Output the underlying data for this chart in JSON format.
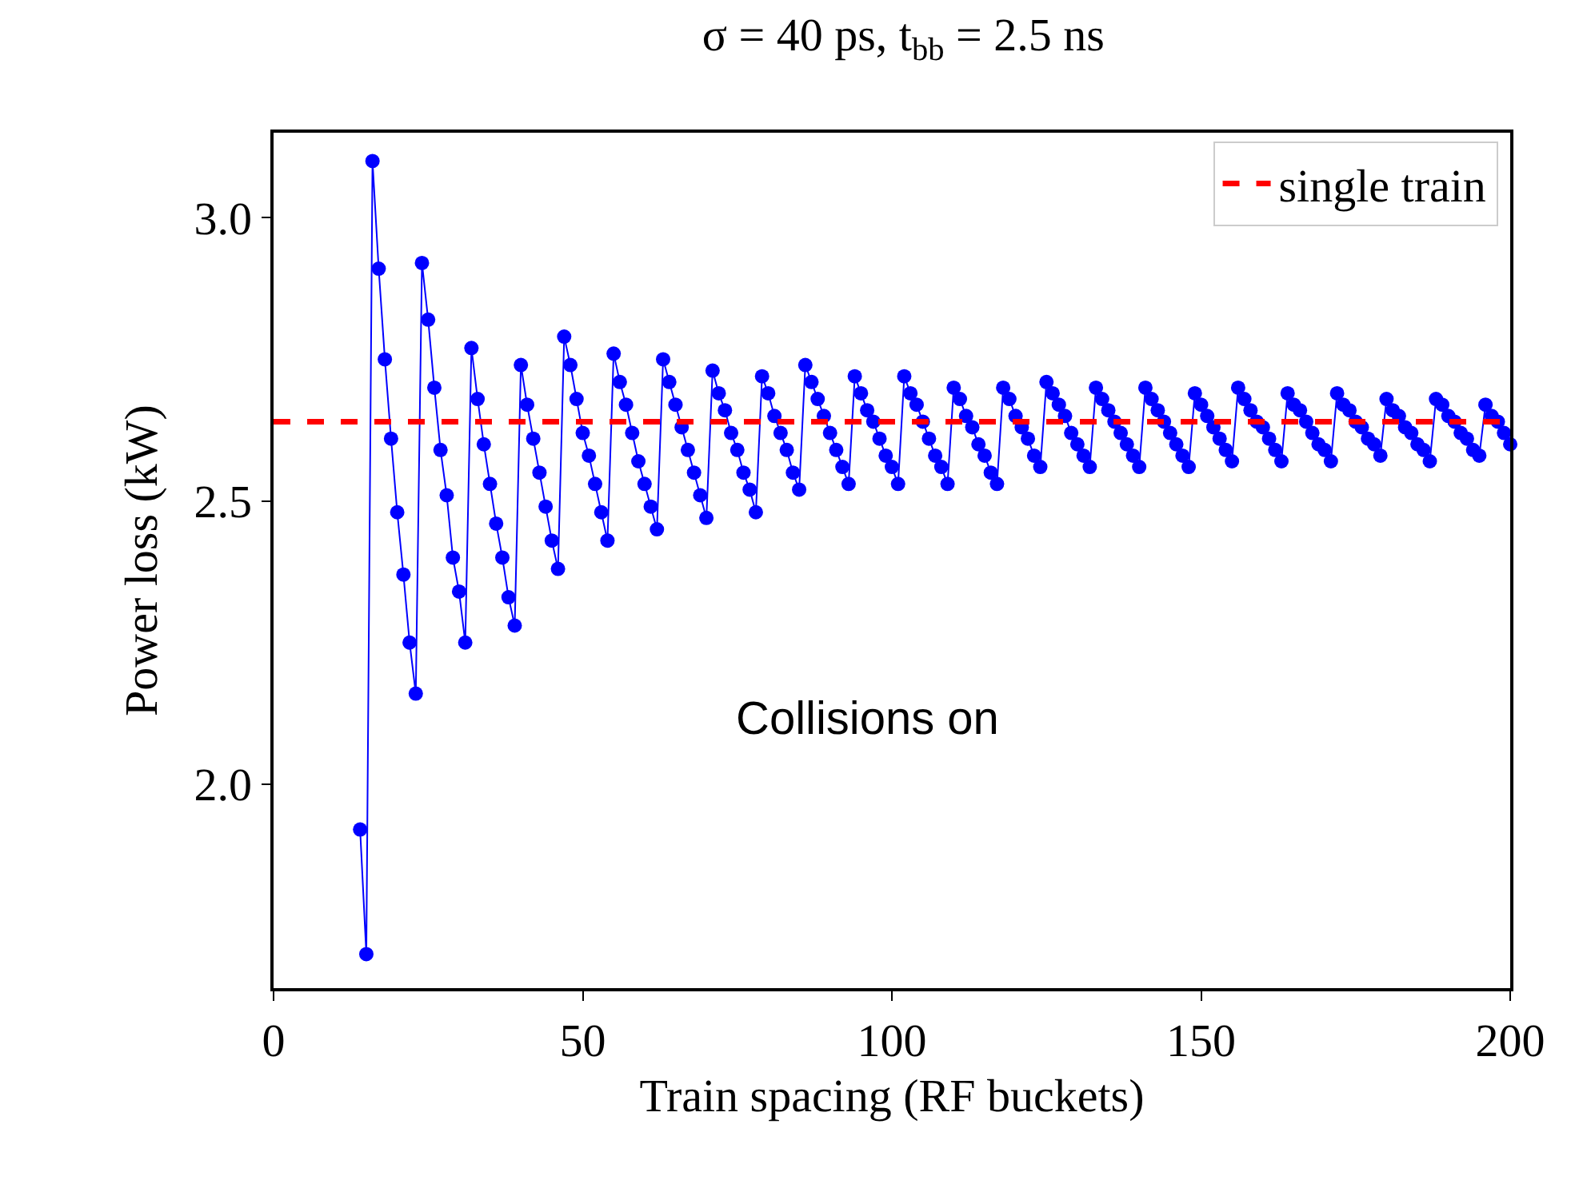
{
  "chart_data": {
    "type": "line",
    "title": "σ = 40 ps, t$_{bb}$ = 2.5 ns",
    "xlabel": "Train spacing (RF buckets)",
    "ylabel": "Power loss (kW)",
    "x": [
      14,
      15,
      16,
      17,
      18,
      19,
      20,
      21,
      22,
      23,
      24,
      25,
      26,
      27,
      28,
      29,
      30,
      31,
      32,
      33,
      34,
      35,
      36,
      37,
      38,
      39,
      40,
      41,
      42,
      43,
      44,
      45,
      46,
      47,
      48,
      49,
      50,
      51,
      52,
      53,
      54,
      55,
      56,
      57,
      58,
      59,
      60,
      61,
      62,
      63,
      64,
      65,
      66,
      67,
      68,
      69,
      70,
      71,
      72,
      73,
      74,
      75,
      76,
      77,
      78,
      79,
      80,
      81,
      82,
      83,
      84,
      85,
      86,
      87,
      88,
      89,
      90,
      91,
      92,
      93,
      94,
      95,
      96,
      97,
      98,
      99,
      100,
      101,
      102,
      103,
      104,
      105,
      106,
      107,
      108,
      109,
      110,
      111,
      112,
      113,
      114,
      115,
      116,
      117,
      118,
      119,
      120,
      121,
      122,
      123,
      124,
      125,
      126,
      127,
      128,
      129,
      130,
      131,
      132,
      133,
      134,
      135,
      136,
      137,
      138,
      139,
      140,
      141,
      142,
      143,
      144,
      145,
      146,
      147,
      148,
      149,
      150,
      151,
      152,
      153,
      154,
      155,
      156,
      157,
      158,
      159,
      160,
      161,
      162,
      163,
      164,
      165,
      166,
      167,
      168,
      169,
      170,
      171,
      172,
      173,
      174,
      175,
      176,
      177,
      178,
      179,
      180,
      181,
      182,
      183,
      184,
      185,
      186,
      187,
      188,
      189,
      190,
      191,
      192,
      193,
      194,
      195,
      196,
      197,
      198,
      199,
      200
    ],
    "series": [
      {
        "color": "#0000ff",
        "values": [
          1.92,
          1.7,
          3.1,
          2.91,
          2.75,
          2.61,
          2.48,
          2.37,
          2.25,
          2.16,
          2.92,
          2.82,
          2.7,
          2.59,
          2.51,
          2.4,
          2.34,
          2.25,
          2.77,
          2.68,
          2.6,
          2.53,
          2.46,
          2.4,
          2.33,
          2.28,
          2.74,
          2.67,
          2.61,
          2.55,
          2.49,
          2.43,
          2.38,
          2.79,
          2.74,
          2.68,
          2.62,
          2.58,
          2.53,
          2.48,
          2.43,
          2.76,
          2.71,
          2.67,
          2.62,
          2.57,
          2.53,
          2.49,
          2.45,
          2.75,
          2.71,
          2.67,
          2.63,
          2.59,
          2.55,
          2.51,
          2.47,
          2.73,
          2.69,
          2.66,
          2.62,
          2.59,
          2.55,
          2.52,
          2.48,
          2.72,
          2.69,
          2.65,
          2.62,
          2.59,
          2.55,
          2.52,
          2.74,
          2.71,
          2.68,
          2.65,
          2.62,
          2.59,
          2.56,
          2.53,
          2.72,
          2.69,
          2.66,
          2.64,
          2.61,
          2.58,
          2.56,
          2.53,
          2.72,
          2.69,
          2.67,
          2.64,
          2.61,
          2.58,
          2.56,
          2.53,
          2.7,
          2.68,
          2.65,
          2.63,
          2.6,
          2.58,
          2.55,
          2.53,
          2.7,
          2.68,
          2.65,
          2.63,
          2.61,
          2.58,
          2.56,
          2.71,
          2.69,
          2.67,
          2.65,
          2.62,
          2.6,
          2.58,
          2.56,
          2.7,
          2.68,
          2.66,
          2.64,
          2.62,
          2.6,
          2.58,
          2.56,
          2.7,
          2.68,
          2.66,
          2.64,
          2.62,
          2.6,
          2.58,
          2.56,
          2.69,
          2.67,
          2.65,
          2.63,
          2.61,
          2.59,
          2.57,
          2.7,
          2.68,
          2.66,
          2.64,
          2.63,
          2.61,
          2.59,
          2.57,
          2.69,
          2.67,
          2.66,
          2.64,
          2.62,
          2.6,
          2.59,
          2.57,
          2.69,
          2.67,
          2.66,
          2.64,
          2.63,
          2.61,
          2.6,
          2.58,
          2.68,
          2.66,
          2.65,
          2.63,
          2.62,
          2.6,
          2.59,
          2.57,
          2.68,
          2.67,
          2.65,
          2.64,
          2.62,
          2.61,
          2.59,
          2.58,
          2.67,
          2.65,
          2.64,
          2.62,
          2.6
        ]
      }
    ],
    "marker": "circle",
    "line_style": "solid",
    "xlim": [
      0,
      200
    ],
    "xticks": [
      0,
      50,
      100,
      150,
      200
    ],
    "ylim": [
      1.64,
      3.15
    ],
    "yticks": [
      {
        "value": 2.0,
        "label": "2.0"
      },
      {
        "value": 2.5,
        "label": "2.5"
      },
      {
        "value": 3.0,
        "label": "3.0"
      }
    ],
    "ref_lines": [
      {
        "axis": "y",
        "value": 2.64,
        "label": "single train",
        "color": "#ff0000",
        "line_style": "dashed"
      }
    ],
    "annotations": [
      "Collisions on"
    ],
    "legend": "top right",
    "grid": false
  }
}
